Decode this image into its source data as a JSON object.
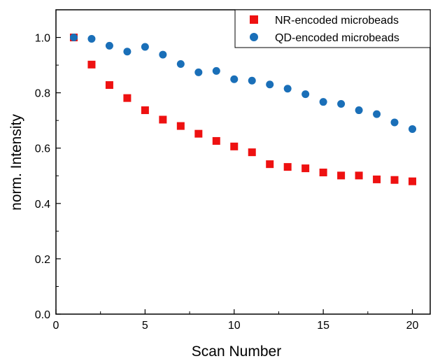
{
  "chart_data": {
    "type": "scatter",
    "title": "",
    "xlabel": "Scan Number",
    "ylabel": "norm. Intensity",
    "xlim": [
      0,
      21
    ],
    "ylim": [
      0.0,
      1.1
    ],
    "x_ticks": [
      0,
      5,
      10,
      15,
      20
    ],
    "x_tick_labels": [
      "0",
      "5",
      "10",
      "15",
      "20"
    ],
    "y_ticks": [
      0.0,
      0.2,
      0.4,
      0.6,
      0.8,
      1.0
    ],
    "y_tick_labels": [
      "0.0",
      "0.2",
      "0.4",
      "0.6",
      "0.8",
      "1.0"
    ],
    "grid": false,
    "legend_position": "top-right",
    "series": [
      {
        "name": "NR-encoded microbeads",
        "marker": "square",
        "color": "#ee1111",
        "x": [
          1,
          2,
          3,
          4,
          5,
          6,
          7,
          8,
          9,
          10,
          11,
          12,
          13,
          14,
          15,
          16,
          17,
          18,
          19,
          20
        ],
        "y": [
          1.0,
          0.902,
          0.828,
          0.781,
          0.737,
          0.703,
          0.68,
          0.652,
          0.626,
          0.606,
          0.585,
          0.542,
          0.532,
          0.527,
          0.512,
          0.501,
          0.501,
          0.487,
          0.485,
          0.48
        ]
      },
      {
        "name": "QD-encoded microbeads",
        "marker": "circle",
        "color": "#1a6fb8",
        "x": [
          1,
          2,
          3,
          4,
          5,
          6,
          7,
          8,
          9,
          10,
          11,
          12,
          13,
          14,
          15,
          16,
          17,
          18,
          19,
          20
        ],
        "y": [
          1.0,
          0.995,
          0.97,
          0.949,
          0.966,
          0.938,
          0.904,
          0.874,
          0.879,
          0.849,
          0.844,
          0.83,
          0.815,
          0.795,
          0.767,
          0.76,
          0.737,
          0.723,
          0.693,
          0.669
        ]
      }
    ]
  }
}
